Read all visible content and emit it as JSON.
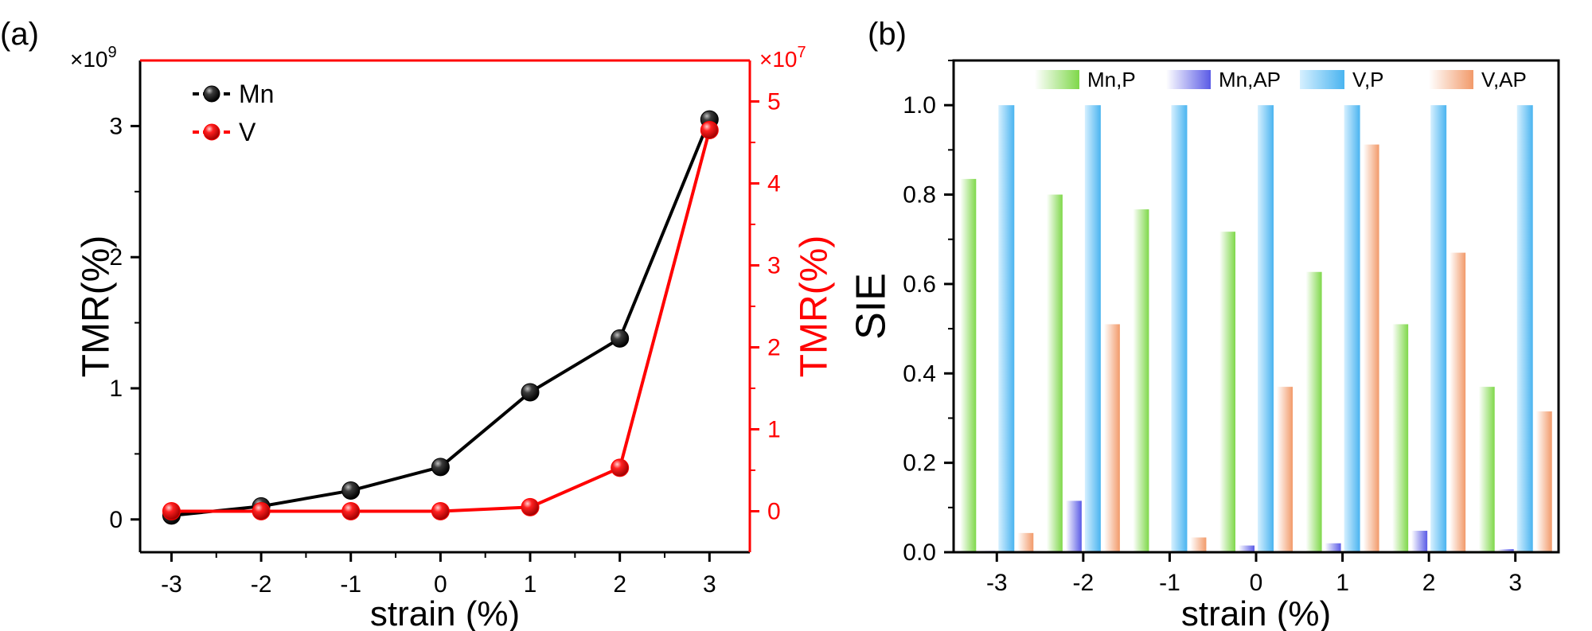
{
  "chart_data": [
    {
      "panel_label": "(a)",
      "type": "line",
      "x": [
        -3,
        -2,
        -1,
        0,
        1,
        2,
        3
      ],
      "xticks": [
        "-3",
        "-2",
        "-1",
        "0",
        "1",
        "2",
        "3"
      ],
      "xlim": [
        -3.35,
        3.45
      ],
      "xlabel": "strain (%)",
      "ylabel_left": "TMR(%)",
      "ylabel_right": "TMR(%)",
      "left_axis": {
        "multiplier": "×10",
        "multiplier_exp": "9",
        "ylim": [
          -0.25,
          3.5
        ],
        "ticks": [
          0,
          1,
          2,
          3
        ],
        "tick_labels": [
          "0",
          "1",
          "2",
          "3"
        ],
        "color": "#000000"
      },
      "right_axis": {
        "multiplier": "×10",
        "multiplier_exp": "7",
        "ylim": [
          -0.5,
          5.5
        ],
        "ticks": [
          0,
          1,
          2,
          3,
          4,
          5
        ],
        "tick_labels": [
          "0",
          "1",
          "2",
          "3",
          "4",
          "5"
        ],
        "color": "#ff0000"
      },
      "series": [
        {
          "name": "Mn",
          "axis": "left",
          "color": "#000000",
          "values": [
            0.03,
            0.1,
            0.22,
            0.4,
            0.97,
            1.38,
            3.05
          ]
        },
        {
          "name": "V",
          "axis": "right",
          "color": "#ff0000",
          "values": [
            0.0,
            0.0,
            0.0,
            0.0,
            0.05,
            0.53,
            4.65
          ]
        }
      ],
      "legend": {
        "position": "top-left",
        "entries": [
          "Mn",
          "V"
        ]
      }
    },
    {
      "panel_label": "(b)",
      "type": "bar",
      "categories": [
        "-3",
        "-2",
        "-1",
        "0",
        "1",
        "2",
        "3"
      ],
      "xlabel": "strain (%)",
      "ylabel": "SIE",
      "ylim": [
        0,
        1.1
      ],
      "yticks": [
        0.0,
        0.2,
        0.4,
        0.6,
        0.8,
        1.0
      ],
      "ytick_labels": [
        "0.0",
        "0.2",
        "0.4",
        "0.6",
        "0.8",
        "1.0"
      ],
      "series": [
        {
          "name": "Mn,P",
          "color": "#8ee05a",
          "values": [
            0.835,
            0.8,
            0.767,
            0.717,
            0.627,
            0.51,
            0.37
          ]
        },
        {
          "name": "Mn,AP",
          "color": "#6f70e8",
          "values": [
            0.003,
            0.115,
            0.002,
            0.015,
            0.02,
            0.048,
            0.007
          ]
        },
        {
          "name": "V,P",
          "color": "#5cbef2",
          "values": [
            1.0,
            1.0,
            1.0,
            1.0,
            1.0,
            1.0,
            1.0
          ]
        },
        {
          "name": "V,AP",
          "color": "#f4a880",
          "values": [
            0.043,
            0.51,
            0.033,
            0.37,
            0.912,
            0.67,
            0.315
          ]
        }
      ],
      "legend": {
        "position": "top",
        "entries": [
          "Mn,P",
          "Mn,AP",
          "V,P",
          "V,AP"
        ]
      }
    }
  ]
}
